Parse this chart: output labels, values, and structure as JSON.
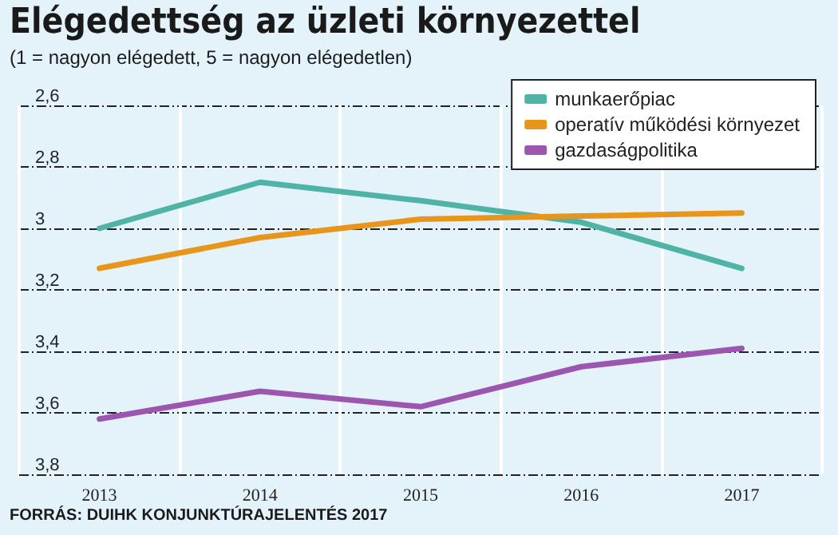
{
  "chart_data": {
    "type": "line",
    "title": "Elégedettség az üzleti környezettel",
    "subtitle": "(1 = nagyon elégedett, 5 = nagyon elégedetlen)",
    "categories": [
      "2013",
      "2014",
      "2015",
      "2016",
      "2017"
    ],
    "series": [
      {
        "name": "munkaerőpiac",
        "color": "#4fb3a5",
        "values": [
          3.0,
          2.85,
          2.91,
          2.98,
          3.13
        ]
      },
      {
        "name": "operatív működési környezet",
        "color": "#e8951c",
        "values": [
          3.13,
          3.03,
          2.97,
          2.96,
          2.95
        ]
      },
      {
        "name": "gazdaságpolitika",
        "color": "#9c56b0",
        "values": [
          3.62,
          3.53,
          3.58,
          3.45,
          3.39
        ]
      }
    ],
    "ylim": [
      3.8,
      2.6
    ],
    "yticks": [
      {
        "value": 2.6,
        "label": "2,6"
      },
      {
        "value": 2.8,
        "label": "2,8"
      },
      3,
      {
        "value": 3.2,
        "label": "3,2"
      },
      {
        "value": 3.4,
        "label": "3,4"
      },
      {
        "value": 3.6,
        "label": "3,6"
      },
      {
        "value": 3.8,
        "label": "3,8"
      }
    ],
    "grid": true,
    "legend": "top right",
    "marker": "none",
    "line_style": "solid",
    "annotations": [
      "FORRÁS: DUIHK KONJUNKTÚRAJELENTÉS 2017"
    ]
  }
}
